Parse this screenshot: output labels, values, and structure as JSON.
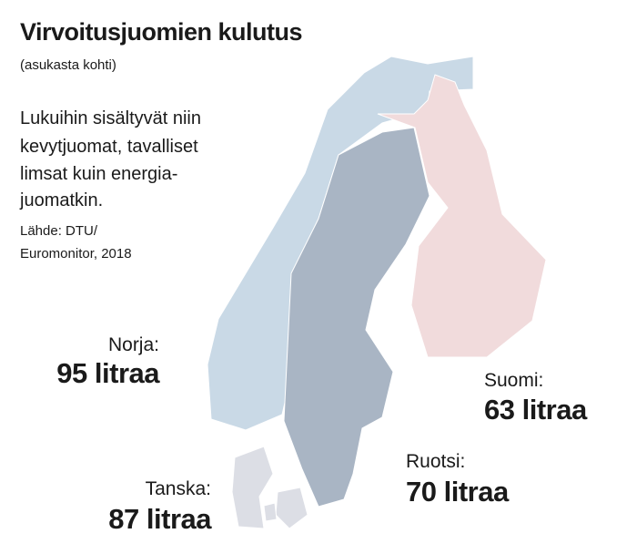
{
  "header": {
    "title": "Virvoitusjuomien kulutus",
    "subtitle": "(asukasta kohti)"
  },
  "description": [
    "Lukuihin sisältyvät niin",
    "kevytjuomat, tavalliset",
    "limsat kuin energia-",
    "juomatkin."
  ],
  "source": [
    "Lähde: DTU/",
    "Euromonitor, 2018"
  ],
  "regions": [
    {
      "label": "Norja:",
      "amount": "95 litraa",
      "color": "#c9d9e6"
    },
    {
      "label": "Suomi:",
      "amount": "63 litraa",
      "color": "#f1dbdc"
    },
    {
      "label": "Ruotsi:",
      "amount": "70 litraa",
      "color": "#a9b5c4"
    },
    {
      "label": "Tanska:",
      "amount": "87 litraa",
      "color": "#dcdee5"
    }
  ]
}
